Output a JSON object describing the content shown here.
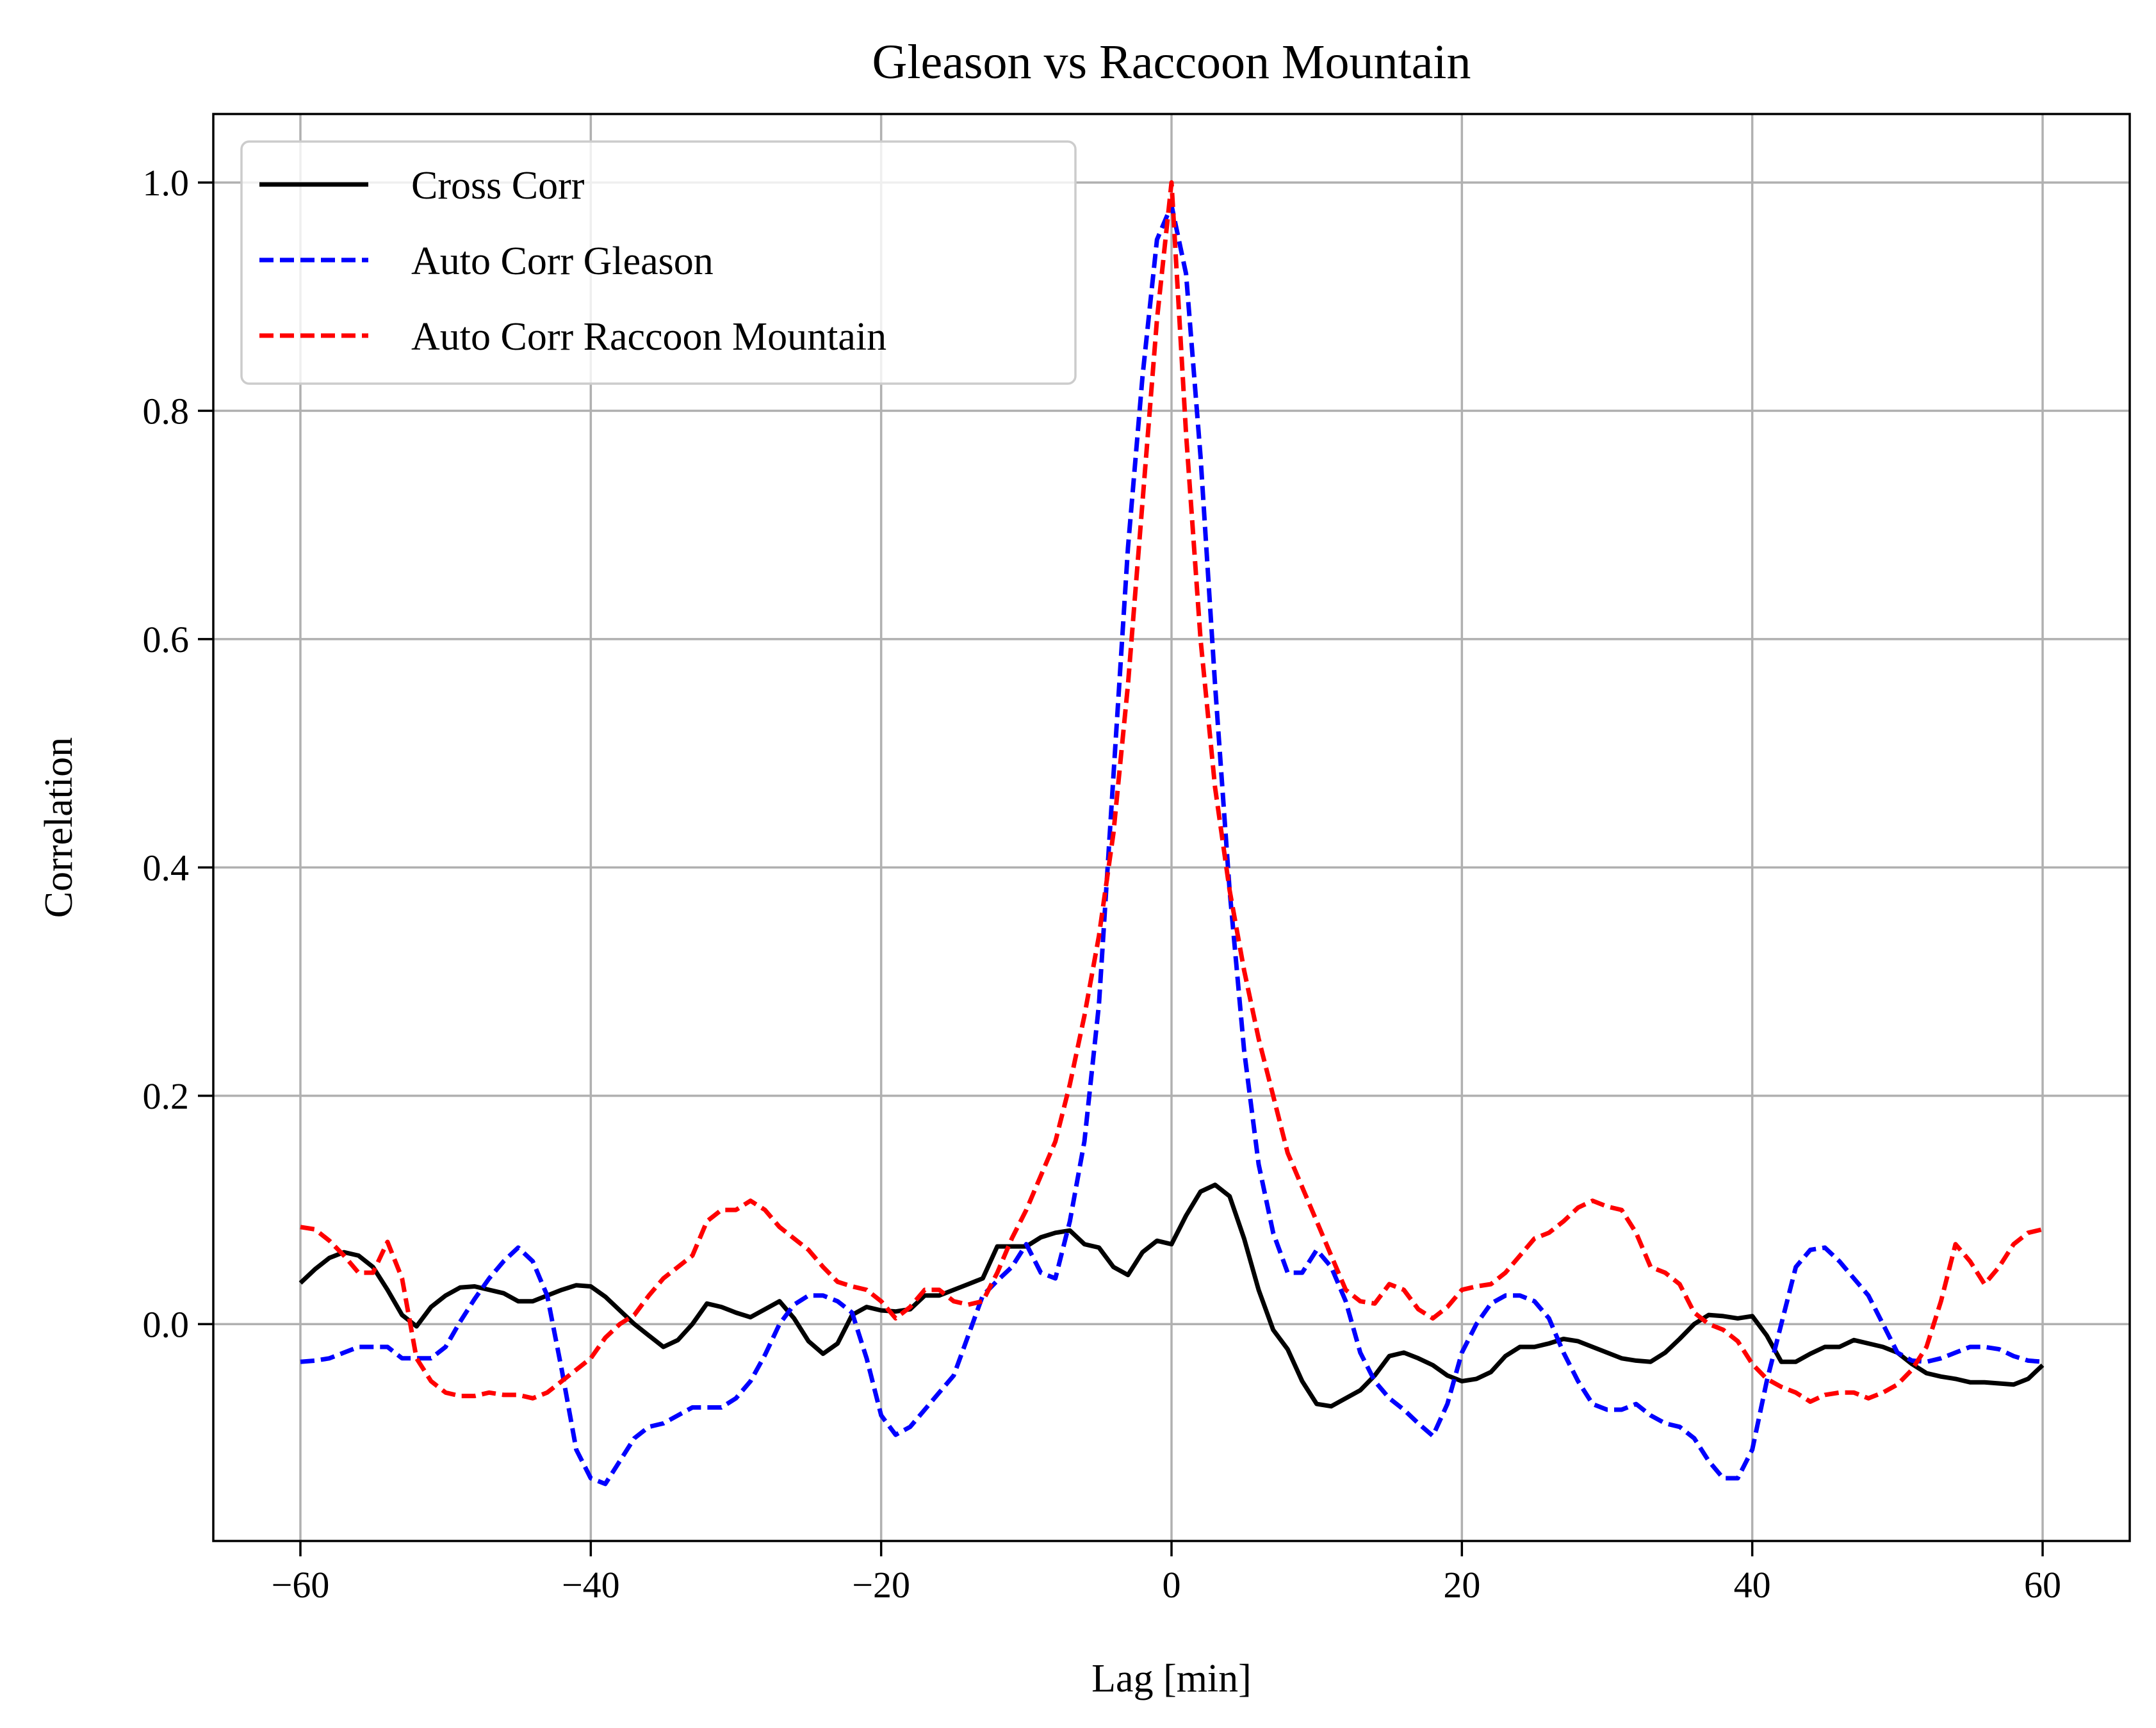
{
  "chart_data": {
    "type": "line",
    "title": "Gleason vs Raccoon Mountain",
    "xlabel": "Lag [min]",
    "ylabel": "Correlation",
    "xlim": [
      -66,
      66
    ],
    "ylim": [
      -0.19,
      1.06
    ],
    "xticks": [
      -60,
      -40,
      -20,
      0,
      20,
      40,
      60
    ],
    "yticks": [
      0.0,
      0.2,
      0.4,
      0.6,
      0.8,
      1.0
    ],
    "xtick_labels": [
      "−60",
      "−40",
      "−20",
      "0",
      "20",
      "40",
      "60"
    ],
    "ytick_labels": [
      "0.0",
      "0.2",
      "0.4",
      "0.6",
      "0.8",
      "1.0"
    ],
    "grid": true,
    "legend_position": "top-left",
    "series": [
      {
        "name": "Cross Corr",
        "color": "#000000",
        "dash": "solid",
        "x": [
          -60,
          -59,
          -58,
          -57,
          -56,
          -55,
          -54,
          -53,
          -52,
          -51,
          -50,
          -49,
          -48,
          -47,
          -46,
          -45,
          -44,
          -43,
          -42,
          -41,
          -40,
          -39,
          -38,
          -37,
          -36,
          -35,
          -34,
          -33,
          -32,
          -31,
          -30,
          -29,
          -28,
          -27,
          -26,
          -25,
          -24,
          -23,
          -22,
          -21,
          -20,
          -19,
          -18,
          -17,
          -16,
          -15,
          -14,
          -13,
          -12,
          -11,
          -10,
          -9,
          -8,
          -7,
          -6,
          -5,
          -4,
          -3,
          -2,
          -1,
          0,
          1,
          2,
          3,
          4,
          5,
          6,
          7,
          8,
          9,
          10,
          11,
          12,
          13,
          14,
          15,
          16,
          17,
          18,
          19,
          20,
          21,
          22,
          23,
          24,
          25,
          26,
          27,
          28,
          29,
          30,
          31,
          32,
          33,
          34,
          35,
          36,
          37,
          38,
          39,
          40,
          41,
          42,
          43,
          44,
          45,
          46,
          47,
          48,
          49,
          50,
          51,
          52,
          53,
          54,
          55,
          56,
          57,
          58,
          59,
          60
        ],
        "y": [
          0.036,
          0.048,
          0.058,
          0.063,
          0.06,
          0.05,
          0.03,
          0.008,
          -0.002,
          0.015,
          0.025,
          0.032,
          0.033,
          0.03,
          0.027,
          0.02,
          0.02,
          0.025,
          0.03,
          0.034,
          0.033,
          0.024,
          0.012,
          0.0,
          -0.01,
          -0.02,
          -0.014,
          0.0,
          0.018,
          0.015,
          0.01,
          0.006,
          0.013,
          0.02,
          0.005,
          -0.015,
          -0.026,
          -0.017,
          0.008,
          0.015,
          0.012,
          0.011,
          0.013,
          0.025,
          0.025,
          0.03,
          0.035,
          0.04,
          0.068,
          0.068,
          0.068,
          0.076,
          0.08,
          0.082,
          0.07,
          0.067,
          0.05,
          0.043,
          0.063,
          0.073,
          0.07,
          0.095,
          0.116,
          0.122,
          0.112,
          0.075,
          0.03,
          -0.005,
          -0.022,
          -0.05,
          -0.07,
          -0.072,
          -0.065,
          -0.058,
          -0.045,
          -0.028,
          -0.025,
          -0.03,
          -0.036,
          -0.045,
          -0.05,
          -0.048,
          -0.042,
          -0.028,
          -0.02,
          -0.02,
          -0.017,
          -0.013,
          -0.015,
          -0.02,
          -0.025,
          -0.03,
          -0.032,
          -0.033,
          -0.025,
          -0.013,
          0.0,
          0.008,
          0.007,
          0.005,
          0.007,
          -0.01,
          -0.033,
          -0.033,
          -0.026,
          -0.02,
          -0.02,
          -0.014,
          -0.017,
          -0.02,
          -0.025,
          -0.035,
          -0.043,
          -0.046,
          -0.048,
          -0.051,
          -0.051,
          -0.052,
          -0.053,
          -0.048,
          -0.036
        ]
      },
      {
        "name": "Auto Corr Gleason",
        "color": "#0000ff",
        "dash": "dashed",
        "x": [
          -60,
          -59,
          -58,
          -57,
          -56,
          -55,
          -54,
          -53,
          -52,
          -51,
          -50,
          -49,
          -48,
          -47,
          -46,
          -45,
          -44,
          -43,
          -42,
          -41,
          -40,
          -39,
          -38,
          -37,
          -36,
          -35,
          -34,
          -33,
          -32,
          -31,
          -30,
          -29,
          -28,
          -27,
          -26,
          -25,
          -24,
          -23,
          -22,
          -21,
          -20,
          -19,
          -18,
          -17,
          -16,
          -15,
          -14,
          -13,
          -12,
          -11,
          -10,
          -9,
          -8,
          -7,
          -6,
          -5,
          -4,
          -3,
          -2,
          -1,
          0,
          1,
          2,
          3,
          4,
          5,
          6,
          7,
          8,
          9,
          10,
          11,
          12,
          13,
          14,
          15,
          16,
          17,
          18,
          19,
          20,
          21,
          22,
          23,
          24,
          25,
          26,
          27,
          28,
          29,
          30,
          31,
          32,
          33,
          34,
          35,
          36,
          37,
          38,
          39,
          40,
          41,
          42,
          43,
          44,
          45,
          46,
          47,
          48,
          49,
          50,
          51,
          52,
          53,
          54,
          55,
          56,
          57,
          58,
          59,
          60
        ],
        "y": [
          -0.033,
          -0.032,
          -0.03,
          -0.025,
          -0.02,
          -0.02,
          -0.02,
          -0.03,
          -0.03,
          -0.03,
          -0.02,
          0.002,
          0.022,
          0.04,
          0.055,
          0.067,
          0.055,
          0.025,
          -0.04,
          -0.11,
          -0.135,
          -0.14,
          -0.12,
          -0.1,
          -0.09,
          -0.087,
          -0.08,
          -0.073,
          -0.073,
          -0.073,
          -0.065,
          -0.05,
          -0.027,
          0.0,
          0.017,
          0.025,
          0.025,
          0.02,
          0.01,
          -0.03,
          -0.08,
          -0.097,
          -0.09,
          -0.075,
          -0.06,
          -0.045,
          -0.01,
          0.025,
          0.038,
          0.05,
          0.07,
          0.045,
          0.04,
          0.09,
          0.16,
          0.28,
          0.48,
          0.68,
          0.83,
          0.95,
          0.98,
          0.92,
          0.76,
          0.56,
          0.38,
          0.24,
          0.14,
          0.08,
          0.045,
          0.045,
          0.065,
          0.05,
          0.02,
          -0.025,
          -0.05,
          -0.065,
          -0.075,
          -0.087,
          -0.098,
          -0.07,
          -0.025,
          0.0,
          0.018,
          0.025,
          0.025,
          0.02,
          0.005,
          -0.025,
          -0.05,
          -0.07,
          -0.075,
          -0.075,
          -0.07,
          -0.08,
          -0.087,
          -0.09,
          -0.1,
          -0.12,
          -0.135,
          -0.135,
          -0.11,
          -0.05,
          0.0,
          0.05,
          0.065,
          0.067,
          0.055,
          0.04,
          0.025,
          0.0,
          -0.025,
          -0.032,
          -0.033,
          -0.03,
          -0.025,
          -0.02,
          -0.02,
          -0.022,
          -0.028,
          -0.032,
          -0.033
        ]
      },
      {
        "name": "Auto Corr Raccoon Mountain",
        "color": "#ff0000",
        "dash": "dashed",
        "x": [
          -60,
          -59,
          -58,
          -57,
          -56,
          -55,
          -54,
          -53,
          -52,
          -51,
          -50,
          -49,
          -48,
          -47,
          -46,
          -45,
          -44,
          -43,
          -42,
          -41,
          -40,
          -39,
          -38,
          -37,
          -36,
          -35,
          -34,
          -33,
          -32,
          -31,
          -30,
          -29,
          -28,
          -27,
          -26,
          -25,
          -24,
          -23,
          -22,
          -21,
          -20,
          -19,
          -18,
          -17,
          -16,
          -15,
          -14,
          -13,
          -12,
          -11,
          -10,
          -9,
          -8,
          -7,
          -6,
          -5,
          -4,
          -3,
          -2,
          -1,
          0,
          1,
          2,
          3,
          4,
          5,
          6,
          7,
          8,
          9,
          10,
          11,
          12,
          13,
          14,
          15,
          16,
          17,
          18,
          19,
          20,
          21,
          22,
          23,
          24,
          25,
          26,
          27,
          28,
          29,
          30,
          31,
          32,
          33,
          34,
          35,
          36,
          37,
          38,
          39,
          40,
          41,
          42,
          43,
          44,
          45,
          46,
          47,
          48,
          49,
          50,
          51,
          52,
          53,
          54,
          55,
          56,
          57,
          58,
          59,
          60
        ],
        "y": [
          0.085,
          0.083,
          0.073,
          0.06,
          0.045,
          0.045,
          0.072,
          0.04,
          -0.03,
          -0.05,
          -0.06,
          -0.063,
          -0.063,
          -0.06,
          -0.062,
          -0.062,
          -0.065,
          -0.06,
          -0.05,
          -0.04,
          -0.03,
          -0.012,
          0.0,
          0.008,
          0.025,
          0.04,
          0.05,
          0.06,
          0.09,
          0.1,
          0.1,
          0.108,
          0.1,
          0.085,
          0.075,
          0.065,
          0.05,
          0.037,
          0.033,
          0.03,
          0.02,
          0.005,
          0.015,
          0.03,
          0.03,
          0.02,
          0.017,
          0.02,
          0.045,
          0.075,
          0.1,
          0.13,
          0.16,
          0.21,
          0.27,
          0.34,
          0.43,
          0.56,
          0.72,
          0.88,
          1.0,
          0.78,
          0.6,
          0.47,
          0.38,
          0.31,
          0.25,
          0.2,
          0.15,
          0.12,
          0.09,
          0.06,
          0.03,
          0.02,
          0.018,
          0.035,
          0.03,
          0.013,
          0.005,
          0.015,
          0.03,
          0.033,
          0.035,
          0.045,
          0.06,
          0.075,
          0.08,
          0.09,
          0.102,
          0.108,
          0.103,
          0.1,
          0.08,
          0.05,
          0.045,
          0.035,
          0.01,
          0.0,
          -0.005,
          -0.015,
          -0.035,
          -0.048,
          -0.055,
          -0.06,
          -0.068,
          -0.062,
          -0.06,
          -0.06,
          -0.065,
          -0.06,
          -0.053,
          -0.04,
          -0.02,
          0.02,
          0.07,
          0.055,
          0.035,
          0.05,
          0.07,
          0.08,
          0.083
        ]
      }
    ]
  }
}
